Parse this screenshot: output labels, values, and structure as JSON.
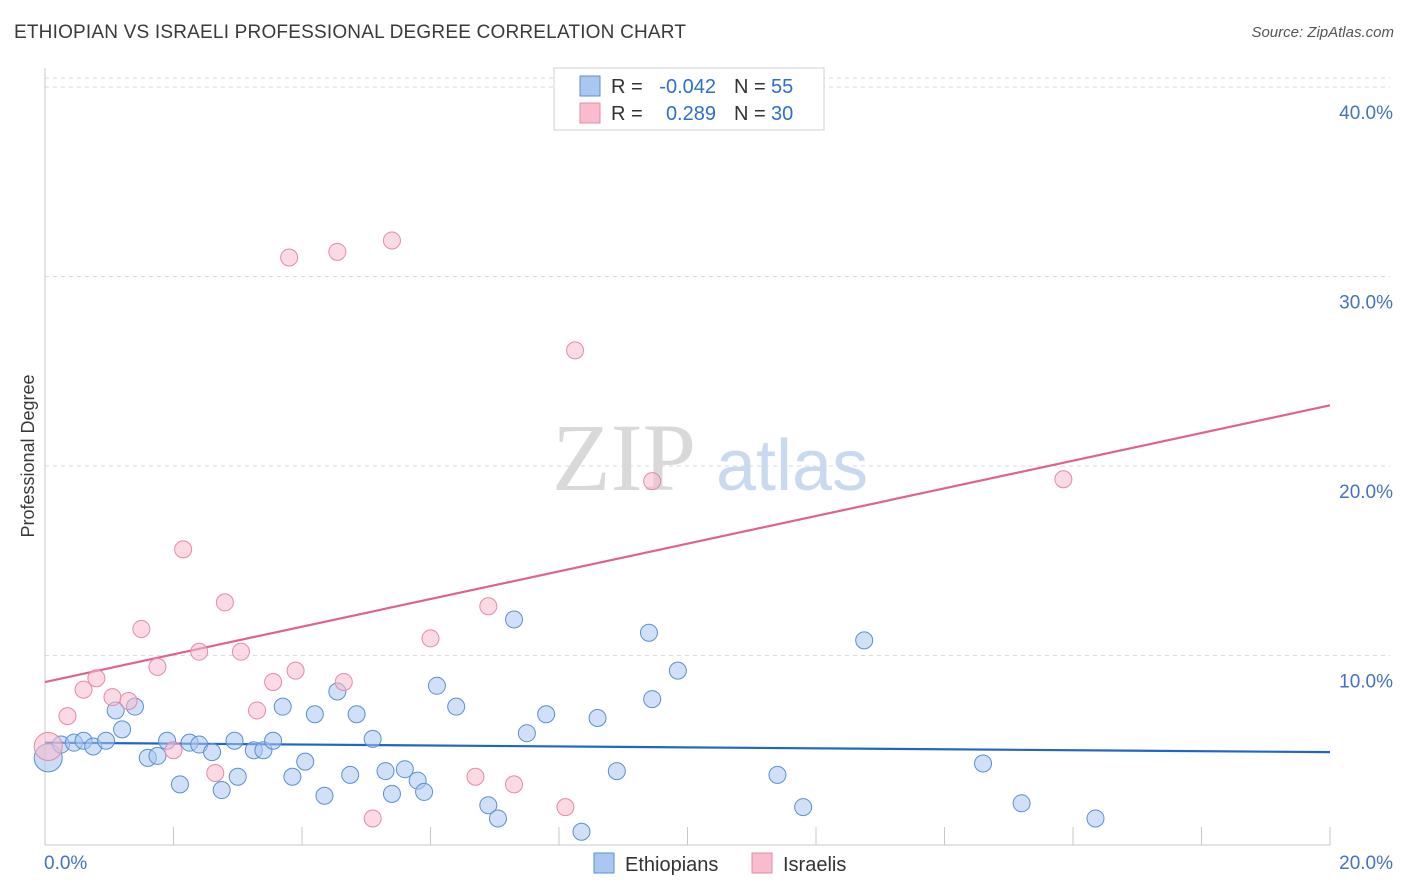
{
  "header": {
    "title": "ETHIOPIAN VS ISRAELI PROFESSIONAL DEGREE CORRELATION CHART",
    "source": "Source: ZipAtlas.com"
  },
  "watermark": {
    "zip": "ZIP",
    "atlas": "atlas"
  },
  "legend": {
    "rows": [
      {
        "r_label": "R =",
        "r_value": "-0.042",
        "n_label": "N =",
        "n_value": "55"
      },
      {
        "r_label": "R =",
        "r_value": "0.289",
        "n_label": "N =",
        "n_value": "30"
      }
    ]
  },
  "colors": {
    "ethiopians_fill": "#a9c7f0",
    "ethiopians_stroke": "#5b8fd6",
    "ethiopians_line": "#1f66c6",
    "israelis_fill": "#f7bccd",
    "israelis_stroke": "#e58aa8",
    "israelis_line": "#e0638f",
    "grid": "#d9d9d9",
    "tick_label": "#4472c4"
  },
  "chart_data": {
    "type": "scatter",
    "title": "ETHIOPIAN VS ISRAELI PROFESSIONAL DEGREE CORRELATION CHART",
    "xlabel": "",
    "ylabel": "Professional Degree",
    "xlim": [
      0,
      20
    ],
    "ylim": [
      0,
      41
    ],
    "x_tick_labels": [
      "0.0%",
      "20.0%"
    ],
    "y_ticks": [
      10,
      20,
      30,
      40
    ],
    "y_tick_labels": [
      "10.0%",
      "20.0%",
      "30.0%",
      "40.0%"
    ],
    "x_minor_ticks": [
      2,
      4,
      6,
      8,
      10,
      12,
      14,
      16,
      18,
      20
    ],
    "grid": true,
    "legend_position": "top-center",
    "series": [
      {
        "name": "Ethiopians",
        "R": -0.042,
        "N": 55,
        "trend": {
          "x": [
            0,
            20
          ],
          "y": [
            5.4,
            4.9
          ]
        },
        "points": [
          {
            "x": 0.05,
            "y": 4.6,
            "big": true
          },
          {
            "x": 0.25,
            "y": 5.3
          },
          {
            "x": 0.45,
            "y": 5.4
          },
          {
            "x": 0.6,
            "y": 5.5
          },
          {
            "x": 0.75,
            "y": 5.2
          },
          {
            "x": 0.95,
            "y": 5.5
          },
          {
            "x": 1.1,
            "y": 7.1
          },
          {
            "x": 1.2,
            "y": 6.1
          },
          {
            "x": 1.4,
            "y": 7.3
          },
          {
            "x": 1.6,
            "y": 4.6
          },
          {
            "x": 1.75,
            "y": 4.7
          },
          {
            "x": 1.9,
            "y": 5.5
          },
          {
            "x": 2.1,
            "y": 3.2
          },
          {
            "x": 2.25,
            "y": 5.4
          },
          {
            "x": 2.4,
            "y": 5.3
          },
          {
            "x": 2.6,
            "y": 4.9
          },
          {
            "x": 2.75,
            "y": 2.9
          },
          {
            "x": 2.95,
            "y": 5.5
          },
          {
            "x": 3.0,
            "y": 3.6
          },
          {
            "x": 3.25,
            "y": 5.0
          },
          {
            "x": 3.4,
            "y": 5.0
          },
          {
            "x": 3.55,
            "y": 5.5
          },
          {
            "x": 3.7,
            "y": 7.3
          },
          {
            "x": 3.85,
            "y": 3.6
          },
          {
            "x": 4.05,
            "y": 4.4
          },
          {
            "x": 4.2,
            "y": 6.9
          },
          {
            "x": 4.35,
            "y": 2.6
          },
          {
            "x": 4.55,
            "y": 8.1
          },
          {
            "x": 4.75,
            "y": 3.7
          },
          {
            "x": 4.85,
            "y": 6.9
          },
          {
            "x": 5.1,
            "y": 5.6
          },
          {
            "x": 5.3,
            "y": 3.9
          },
          {
            "x": 5.4,
            "y": 2.7
          },
          {
            "x": 5.6,
            "y": 4.0
          },
          {
            "x": 5.8,
            "y": 3.4
          },
          {
            "x": 5.9,
            "y": 2.8
          },
          {
            "x": 6.1,
            "y": 8.4
          },
          {
            "x": 6.4,
            "y": 7.3
          },
          {
            "x": 6.9,
            "y": 2.1
          },
          {
            "x": 7.05,
            "y": 1.4
          },
          {
            "x": 7.3,
            "y": 11.9
          },
          {
            "x": 7.5,
            "y": 5.9
          },
          {
            "x": 7.8,
            "y": 6.9
          },
          {
            "x": 8.35,
            "y": 0.7
          },
          {
            "x": 8.6,
            "y": 6.7
          },
          {
            "x": 8.9,
            "y": 3.9
          },
          {
            "x": 9.4,
            "y": 11.2
          },
          {
            "x": 9.45,
            "y": 7.7
          },
          {
            "x": 9.85,
            "y": 9.2
          },
          {
            "x": 11.4,
            "y": 3.7
          },
          {
            "x": 11.8,
            "y": 2.0
          },
          {
            "x": 12.75,
            "y": 10.8
          },
          {
            "x": 14.6,
            "y": 4.3
          },
          {
            "x": 15.2,
            "y": 2.2
          },
          {
            "x": 16.35,
            "y": 1.4
          }
        ]
      },
      {
        "name": "Israelis",
        "R": 0.289,
        "N": 30,
        "trend": {
          "x": [
            0,
            20
          ],
          "y": [
            8.6,
            23.2
          ]
        },
        "points": [
          {
            "x": 0.05,
            "y": 5.2,
            "big": true
          },
          {
            "x": 0.35,
            "y": 6.8
          },
          {
            "x": 0.6,
            "y": 8.2
          },
          {
            "x": 0.8,
            "y": 8.8
          },
          {
            "x": 1.05,
            "y": 7.8
          },
          {
            "x": 1.3,
            "y": 7.6
          },
          {
            "x": 1.5,
            "y": 11.4
          },
          {
            "x": 1.75,
            "y": 9.4
          },
          {
            "x": 2.0,
            "y": 5.0
          },
          {
            "x": 2.15,
            "y": 15.6
          },
          {
            "x": 2.4,
            "y": 10.2
          },
          {
            "x": 2.65,
            "y": 3.8
          },
          {
            "x": 2.8,
            "y": 12.8
          },
          {
            "x": 3.05,
            "y": 10.2
          },
          {
            "x": 3.3,
            "y": 7.1
          },
          {
            "x": 3.55,
            "y": 8.6
          },
          {
            "x": 3.8,
            "y": 31.0
          },
          {
            "x": 3.9,
            "y": 9.2
          },
          {
            "x": 4.55,
            "y": 31.3
          },
          {
            "x": 4.65,
            "y": 8.6
          },
          {
            "x": 5.1,
            "y": 1.4
          },
          {
            "x": 5.4,
            "y": 31.9
          },
          {
            "x": 6.0,
            "y": 10.9
          },
          {
            "x": 6.7,
            "y": 3.6
          },
          {
            "x": 6.9,
            "y": 12.6
          },
          {
            "x": 7.3,
            "y": 3.2
          },
          {
            "x": 8.1,
            "y": 2.0
          },
          {
            "x": 8.25,
            "y": 26.1
          },
          {
            "x": 9.45,
            "y": 19.2
          },
          {
            "x": 15.85,
            "y": 19.3
          }
        ]
      }
    ]
  },
  "bottom_legend": {
    "items": [
      "Ethiopians",
      "Israelis"
    ]
  }
}
